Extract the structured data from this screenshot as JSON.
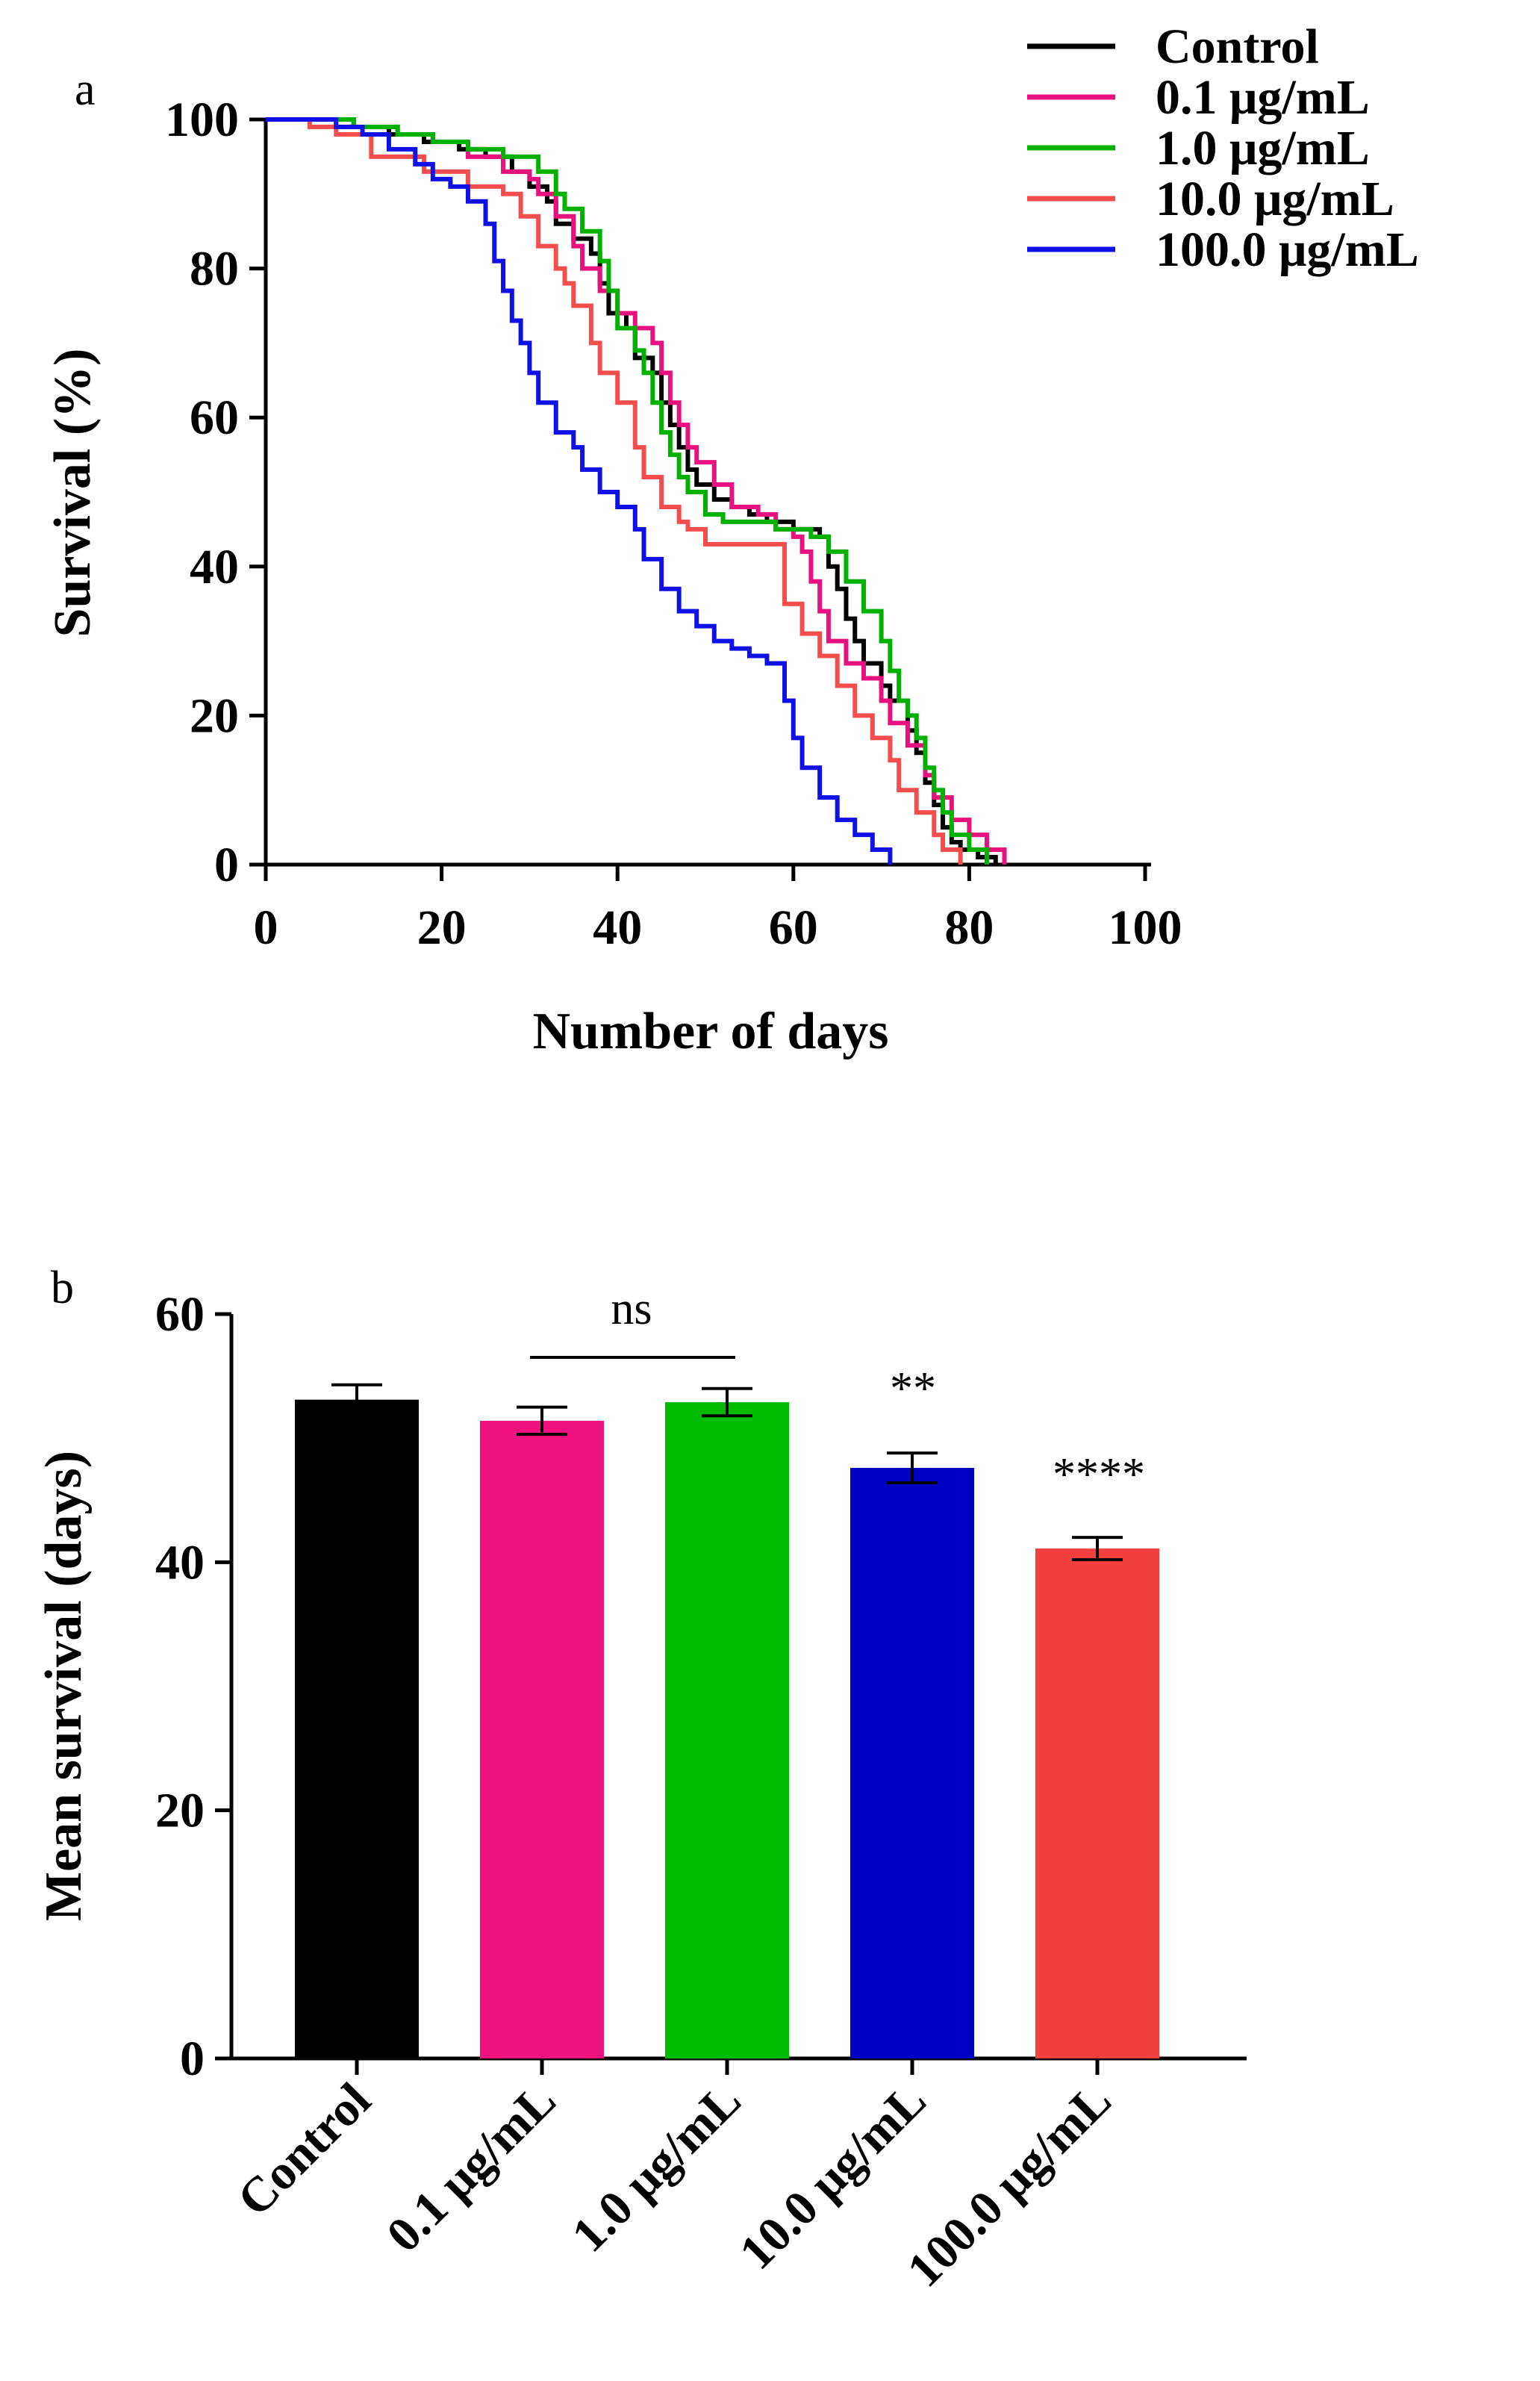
{
  "chart_data": [
    {
      "panel_label": "a",
      "type": "line",
      "step": true,
      "xlabel": "Number of days",
      "ylabel": "Survival (%)",
      "xlim": [
        0,
        100
      ],
      "ylim": [
        0,
        100
      ],
      "x_ticks": [
        "0",
        "20",
        "40",
        "60",
        "80",
        "100"
      ],
      "y_ticks": [
        "0",
        "20",
        "40",
        "60",
        "80",
        "100"
      ],
      "legend_position": "top-right",
      "series": [
        {
          "name": "Control",
          "color": "#000000",
          "points": [
            [
              0,
              100
            ],
            [
              5,
              100
            ],
            [
              10,
              99
            ],
            [
              14,
              98
            ],
            [
              18,
              97
            ],
            [
              22,
              96
            ],
            [
              25,
              95
            ],
            [
              28,
              93
            ],
            [
              30,
              91
            ],
            [
              32,
              89
            ],
            [
              33,
              86
            ],
            [
              35,
              84
            ],
            [
              37,
              82
            ],
            [
              38,
              78
            ],
            [
              39,
              74
            ],
            [
              41,
              72
            ],
            [
              42,
              68
            ],
            [
              44,
              66
            ],
            [
              45,
              62
            ],
            [
              46,
              59
            ],
            [
              47,
              56
            ],
            [
              48,
              53
            ],
            [
              49,
              51
            ],
            [
              51,
              49
            ],
            [
              53,
              48
            ],
            [
              55,
              47
            ],
            [
              57,
              46
            ],
            [
              60,
              45
            ],
            [
              62,
              45
            ],
            [
              63,
              44
            ],
            [
              64,
              40
            ],
            [
              65,
              37
            ],
            [
              66,
              33
            ],
            [
              67,
              30
            ],
            [
              68,
              27
            ],
            [
              70,
              24
            ],
            [
              71,
              22
            ],
            [
              73,
              18
            ],
            [
              74,
              15
            ],
            [
              75,
              11
            ],
            [
              76,
              8
            ],
            [
              77,
              5
            ],
            [
              78,
              3
            ],
            [
              79,
              2
            ],
            [
              81,
              1
            ],
            [
              83,
              0
            ]
          ]
        },
        {
          "name": "0.1 μg/mL",
          "color": "#E8127F",
          "points": [
            [
              0,
              100
            ],
            [
              4,
              100
            ],
            [
              8,
              99
            ],
            [
              12,
              99
            ],
            [
              15,
              98
            ],
            [
              19,
              97
            ],
            [
              23,
              95
            ],
            [
              27,
              93
            ],
            [
              30,
              92
            ],
            [
              31,
              90
            ],
            [
              33,
              87
            ],
            [
              35,
              83
            ],
            [
              36,
              80
            ],
            [
              38,
              77
            ],
            [
              40,
              74
            ],
            [
              42,
              72
            ],
            [
              44,
              70
            ],
            [
              45,
              66
            ],
            [
              46,
              62
            ],
            [
              47,
              59
            ],
            [
              48,
              56
            ],
            [
              49,
              54
            ],
            [
              51,
              51
            ],
            [
              53,
              48
            ],
            [
              56,
              47
            ],
            [
              58,
              45
            ],
            [
              60,
              44
            ],
            [
              61,
              42
            ],
            [
              62,
              38
            ],
            [
              63,
              34
            ],
            [
              64,
              30
            ],
            [
              66,
              27
            ],
            [
              68,
              25
            ],
            [
              70,
              22
            ],
            [
              71,
              19
            ],
            [
              73,
              16
            ],
            [
              75,
              12
            ],
            [
              76,
              9
            ],
            [
              78,
              6
            ],
            [
              80,
              4
            ],
            [
              82,
              2
            ],
            [
              84,
              0
            ]
          ]
        },
        {
          "name": "1.0 μg/mL",
          "color": "#00B100",
          "points": [
            [
              0,
              100
            ],
            [
              6,
              100
            ],
            [
              10,
              99
            ],
            [
              15,
              98
            ],
            [
              19,
              97
            ],
            [
              23,
              96
            ],
            [
              27,
              95
            ],
            [
              31,
              93
            ],
            [
              33,
              90
            ],
            [
              34,
              88
            ],
            [
              36,
              85
            ],
            [
              38,
              81
            ],
            [
              39,
              77
            ],
            [
              40,
              72
            ],
            [
              42,
              69
            ],
            [
              43,
              66
            ],
            [
              44,
              62
            ],
            [
              45,
              58
            ],
            [
              46,
              55
            ],
            [
              47,
              52
            ],
            [
              48,
              50
            ],
            [
              50,
              47
            ],
            [
              52,
              46
            ],
            [
              55,
              46
            ],
            [
              58,
              45
            ],
            [
              61,
              45
            ],
            [
              62,
              44
            ],
            [
              64,
              42
            ],
            [
              66,
              38
            ],
            [
              68,
              34
            ],
            [
              70,
              30
            ],
            [
              71,
              26
            ],
            [
              72,
              22
            ],
            [
              73,
              20
            ],
            [
              74,
              17
            ],
            [
              75,
              13
            ],
            [
              76,
              10
            ],
            [
              77,
              7
            ],
            [
              78,
              4
            ],
            [
              80,
              2
            ],
            [
              82,
              0
            ]
          ]
        },
        {
          "name": "10.0 μg/mL",
          "color": "#F44D4D",
          "points": [
            [
              0,
              100
            ],
            [
              5,
              99
            ],
            [
              8,
              98
            ],
            [
              12,
              95
            ],
            [
              18,
              93
            ],
            [
              23,
              91
            ],
            [
              27,
              90
            ],
            [
              29,
              87
            ],
            [
              31,
              83
            ],
            [
              33,
              80
            ],
            [
              34,
              78
            ],
            [
              35,
              75
            ],
            [
              37,
              70
            ],
            [
              38,
              66
            ],
            [
              40,
              62
            ],
            [
              42,
              56
            ],
            [
              43,
              52
            ],
            [
              45,
              48
            ],
            [
              47,
              46
            ],
            [
              48,
              45
            ],
            [
              50,
              43
            ],
            [
              55,
              43
            ],
            [
              57,
              43
            ],
            [
              59,
              35
            ],
            [
              61,
              31
            ],
            [
              63,
              28
            ],
            [
              65,
              24
            ],
            [
              67,
              20
            ],
            [
              69,
              17
            ],
            [
              71,
              14
            ],
            [
              72,
              10
            ],
            [
              74,
              7
            ],
            [
              76,
              4
            ],
            [
              77,
              2
            ],
            [
              79,
              0
            ]
          ]
        },
        {
          "name": "100.0 μg/mL",
          "color": "#1010E6",
          "points": [
            [
              0,
              100
            ],
            [
              8,
              99
            ],
            [
              11,
              98
            ],
            [
              14,
              96
            ],
            [
              17,
              94
            ],
            [
              19,
              92
            ],
            [
              21,
              91
            ],
            [
              23,
              89
            ],
            [
              25,
              86
            ],
            [
              26,
              81
            ],
            [
              27,
              77
            ],
            [
              28,
              73
            ],
            [
              29,
              70
            ],
            [
              30,
              66
            ],
            [
              31,
              62
            ],
            [
              33,
              58
            ],
            [
              35,
              56
            ],
            [
              36,
              53
            ],
            [
              38,
              50
            ],
            [
              40,
              48
            ],
            [
              42,
              45
            ],
            [
              43,
              41
            ],
            [
              45,
              37
            ],
            [
              47,
              34
            ],
            [
              49,
              32
            ],
            [
              51,
              30
            ],
            [
              53,
              29
            ],
            [
              55,
              28
            ],
            [
              57,
              27
            ],
            [
              59,
              22
            ],
            [
              60,
              17
            ],
            [
              61,
              13
            ],
            [
              63,
              9
            ],
            [
              65,
              6
            ],
            [
              67,
              4
            ],
            [
              69,
              2
            ],
            [
              71,
              0
            ]
          ]
        }
      ]
    },
    {
      "panel_label": "b",
      "type": "bar",
      "ylabel": "Mean survival (days)",
      "ylim": [
        0,
        60
      ],
      "y_ticks": [
        "0",
        "20",
        "40",
        "60"
      ],
      "categories": [
        "Control",
        "0.1 μg/mL",
        "1.0 μg/mL",
        "10.0 μg/mL",
        "100.0 μg/mL"
      ],
      "values": [
        53.1,
        51.4,
        52.9,
        47.6,
        41.1
      ],
      "errors": [
        1.2,
        1.1,
        1.1,
        1.2,
        0.9
      ],
      "colors": [
        "#000000",
        "#F0127F",
        "#00BC00",
        "#0000C2",
        "#F43F3F"
      ],
      "annotations": {
        "ns": "ns",
        "sig_10": "**",
        "sig_100": "****"
      }
    }
  ]
}
